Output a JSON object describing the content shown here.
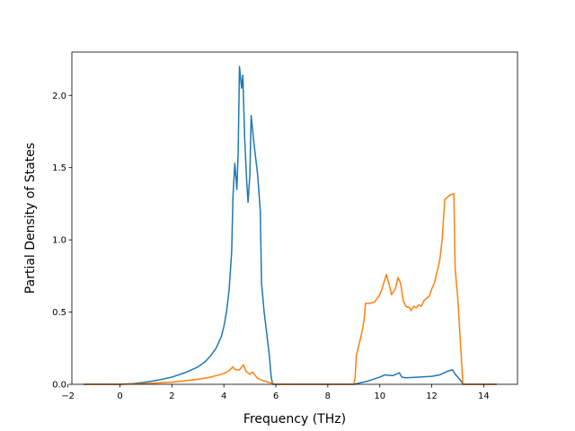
{
  "chart_data": {
    "type": "line",
    "title": "",
    "xlabel": "Frequency (THz)",
    "ylabel": "Partial Density of States",
    "xlim": [
      -1.85,
      15.3
    ],
    "ylim": [
      0,
      2.3
    ],
    "xticks": [
      -2,
      0,
      2,
      4,
      6,
      8,
      10,
      12,
      14
    ],
    "yticks": [
      0.0,
      0.5,
      1.0,
      1.5,
      2.0
    ],
    "xtick_labels": [
      "−2",
      "0",
      "2",
      "4",
      "6",
      "8",
      "10",
      "12",
      "14"
    ],
    "ytick_labels": [
      "0.0",
      "0.5",
      "1.0",
      "1.5",
      "2.0"
    ],
    "grid": false,
    "legend": "none",
    "series": [
      {
        "color": "#1f77b4",
        "points": [
          [
            -1.4,
            0.0
          ],
          [
            0.0,
            0.0
          ],
          [
            0.5,
            0.005
          ],
          [
            1.0,
            0.015
          ],
          [
            1.5,
            0.03
          ],
          [
            2.0,
            0.05
          ],
          [
            2.5,
            0.08
          ],
          [
            3.0,
            0.12
          ],
          [
            3.3,
            0.16
          ],
          [
            3.5,
            0.2
          ],
          [
            3.7,
            0.25
          ],
          [
            3.9,
            0.33
          ],
          [
            4.0,
            0.4
          ],
          [
            4.1,
            0.5
          ],
          [
            4.2,
            0.65
          ],
          [
            4.3,
            0.92
          ],
          [
            4.35,
            1.3
          ],
          [
            4.42,
            1.53
          ],
          [
            4.5,
            1.35
          ],
          [
            4.55,
            1.6
          ],
          [
            4.6,
            2.2
          ],
          [
            4.68,
            2.05
          ],
          [
            4.73,
            2.14
          ],
          [
            4.8,
            1.7
          ],
          [
            4.88,
            1.4
          ],
          [
            4.93,
            1.26
          ],
          [
            5.0,
            1.45
          ],
          [
            5.05,
            1.86
          ],
          [
            5.15,
            1.68
          ],
          [
            5.3,
            1.45
          ],
          [
            5.4,
            1.2
          ],
          [
            5.45,
            0.7
          ],
          [
            5.55,
            0.5
          ],
          [
            5.65,
            0.35
          ],
          [
            5.75,
            0.2
          ],
          [
            5.82,
            0.05
          ],
          [
            5.88,
            0.0
          ],
          [
            9.0,
            0.0
          ],
          [
            9.5,
            0.02
          ],
          [
            10.0,
            0.05
          ],
          [
            10.2,
            0.065
          ],
          [
            10.5,
            0.06
          ],
          [
            10.75,
            0.08
          ],
          [
            10.85,
            0.05
          ],
          [
            11.0,
            0.045
          ],
          [
            11.5,
            0.05
          ],
          [
            12.0,
            0.055
          ],
          [
            12.3,
            0.065
          ],
          [
            12.6,
            0.09
          ],
          [
            12.8,
            0.1
          ],
          [
            12.9,
            0.07
          ],
          [
            13.1,
            0.03
          ],
          [
            13.2,
            0.0
          ],
          [
            14.5,
            0.0
          ]
        ]
      },
      {
        "color": "#ff7f0e",
        "points": [
          [
            -1.4,
            0.0
          ],
          [
            0.0,
            0.0
          ],
          [
            0.5,
            0.002
          ],
          [
            1.0,
            0.005
          ],
          [
            2.0,
            0.015
          ],
          [
            2.5,
            0.025
          ],
          [
            3.0,
            0.035
          ],
          [
            3.5,
            0.05
          ],
          [
            4.0,
            0.075
          ],
          [
            4.2,
            0.095
          ],
          [
            4.35,
            0.12
          ],
          [
            4.45,
            0.1
          ],
          [
            4.6,
            0.1
          ],
          [
            4.75,
            0.135
          ],
          [
            4.85,
            0.09
          ],
          [
            5.0,
            0.07
          ],
          [
            5.1,
            0.085
          ],
          [
            5.3,
            0.04
          ],
          [
            5.6,
            0.02
          ],
          [
            5.9,
            0.005
          ],
          [
            6.0,
            0.0
          ],
          [
            9.0,
            0.0
          ],
          [
            9.05,
            0.05
          ],
          [
            9.1,
            0.2
          ],
          [
            9.3,
            0.35
          ],
          [
            9.4,
            0.45
          ],
          [
            9.45,
            0.56
          ],
          [
            9.6,
            0.56
          ],
          [
            9.8,
            0.57
          ],
          [
            10.0,
            0.62
          ],
          [
            10.1,
            0.67
          ],
          [
            10.25,
            0.76
          ],
          [
            10.35,
            0.7
          ],
          [
            10.45,
            0.62
          ],
          [
            10.6,
            0.66
          ],
          [
            10.7,
            0.74
          ],
          [
            10.8,
            0.7
          ],
          [
            10.9,
            0.58
          ],
          [
            11.0,
            0.54
          ],
          [
            11.15,
            0.53
          ],
          [
            11.2,
            0.51
          ],
          [
            11.3,
            0.54
          ],
          [
            11.4,
            0.53
          ],
          [
            11.5,
            0.55
          ],
          [
            11.6,
            0.54
          ],
          [
            11.7,
            0.58
          ],
          [
            11.9,
            0.61
          ],
          [
            12.0,
            0.66
          ],
          [
            12.1,
            0.7
          ],
          [
            12.3,
            0.85
          ],
          [
            12.4,
            1.0
          ],
          [
            12.5,
            1.28
          ],
          [
            12.7,
            1.31
          ],
          [
            12.85,
            1.32
          ],
          [
            12.9,
            0.8
          ],
          [
            13.0,
            0.6
          ],
          [
            13.1,
            0.3
          ],
          [
            13.2,
            0.0
          ],
          [
            14.5,
            0.0
          ]
        ]
      }
    ]
  }
}
